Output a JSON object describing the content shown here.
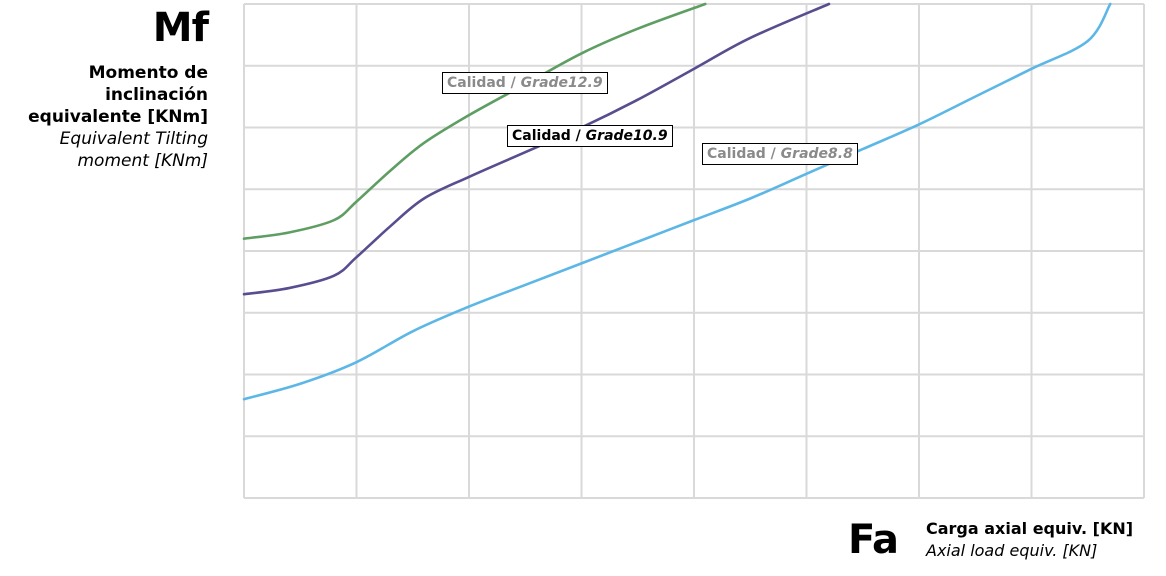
{
  "chart_data": {
    "type": "line",
    "title": "",
    "y_axis": {
      "symbol": "Mf",
      "label_es": "Momento de inclinación equivalente [KNm]",
      "label_en": "Equivalent Tilting moment [KNm]",
      "range": [
        0,
        8
      ]
    },
    "x_axis": {
      "symbol": "Fa",
      "label_es": "Carga axial equiv. [KN]",
      "label_en": "Axial load equiv. [KN]",
      "range": [
        0,
        8
      ]
    },
    "grid": true,
    "legend": "inline labels",
    "series": [
      {
        "name": "Calidad / Grade12.9",
        "label_prefix": "Calidad / ",
        "label_grade": "Grade12.9",
        "color": "#5e9e62",
        "x": [
          0,
          0.4,
          0.8,
          1.0,
          1.3,
          1.6,
          2.0,
          2.5,
          3.0,
          3.5,
          4.1
        ],
        "y": [
          4.2,
          4.3,
          4.5,
          4.8,
          5.3,
          5.75,
          6.2,
          6.7,
          7.2,
          7.6,
          8.0
        ]
      },
      {
        "name": "Calidad / Grade10.9",
        "label_prefix": "Calidad / ",
        "label_grade": "Grade10.9",
        "color": "#5a4d8f",
        "x": [
          0,
          0.4,
          0.8,
          1.0,
          1.3,
          1.6,
          2.0,
          2.5,
          3.0,
          3.5,
          4.0,
          4.5,
          5.2
        ],
        "y": [
          3.3,
          3.4,
          3.6,
          3.9,
          4.4,
          4.85,
          5.2,
          5.6,
          6.0,
          6.45,
          6.95,
          7.45,
          8.0
        ]
      },
      {
        "name": "Calidad / Grade8.8",
        "label_prefix": "Calidad / ",
        "label_grade": "Grade8.8",
        "color": "#5cb7e6",
        "x": [
          0,
          0.5,
          1.0,
          1.5,
          2.0,
          2.5,
          3.0,
          3.5,
          4.0,
          4.5,
          5.0,
          5.5,
          6.0,
          6.5,
          7.0,
          7.5,
          7.7
        ],
        "y": [
          1.6,
          1.85,
          2.2,
          2.7,
          3.1,
          3.45,
          3.8,
          4.15,
          4.5,
          4.85,
          5.25,
          5.65,
          6.05,
          6.5,
          6.95,
          7.4,
          8.0
        ]
      }
    ]
  }
}
